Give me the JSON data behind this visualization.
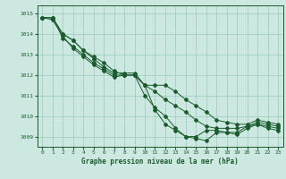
{
  "title": "Graphe pression niveau de la mer (hPa)",
  "background_color": "#cce8e0",
  "grid_color": "#99ccbb",
  "line_color": "#1a5c2e",
  "xlim": [
    -0.5,
    23.5
  ],
  "ylim": [
    1008.5,
    1015.4
  ],
  "yticks": [
    1009,
    1010,
    1011,
    1012,
    1013,
    1014,
    1015
  ],
  "xticks": [
    0,
    1,
    2,
    3,
    4,
    5,
    6,
    7,
    8,
    9,
    10,
    11,
    12,
    13,
    14,
    15,
    16,
    17,
    18,
    19,
    20,
    21,
    22,
    23
  ],
  "series": [
    [
      1014.8,
      1014.8,
      1014.0,
      1013.7,
      1013.2,
      1012.9,
      1012.6,
      1012.2,
      1012.0,
      1012.0,
      1011.5,
      1010.3,
      1009.6,
      1009.3,
      1009.0,
      1008.9,
      1008.8,
      1009.2,
      1009.2,
      1009.2,
      1009.5,
      1009.6,
      1009.4,
      1009.3
    ],
    [
      1014.8,
      1014.8,
      1014.0,
      1013.7,
      1013.2,
      1012.8,
      1012.4,
      1012.1,
      1012.1,
      1012.1,
      1011.5,
      1011.5,
      1011.5,
      1011.2,
      1010.8,
      1010.5,
      1010.2,
      1009.8,
      1009.7,
      1009.6,
      1009.6,
      1009.8,
      1009.7,
      1009.6
    ],
    [
      1014.8,
      1014.8,
      1013.8,
      1013.4,
      1013.0,
      1012.6,
      1012.3,
      1012.0,
      1012.0,
      1012.0,
      1011.5,
      1011.2,
      1010.8,
      1010.5,
      1010.2,
      1009.8,
      1009.5,
      1009.4,
      1009.4,
      1009.4,
      1009.5,
      1009.7,
      1009.6,
      1009.5
    ],
    [
      1014.8,
      1014.7,
      1013.9,
      1013.3,
      1012.9,
      1012.5,
      1012.2,
      1011.9,
      1012.0,
      1012.0,
      1011.0,
      1010.4,
      1010.0,
      1009.4,
      1009.0,
      1009.0,
      1009.3,
      1009.3,
      1009.2,
      1009.1,
      1009.4,
      1009.6,
      1009.5,
      1009.4
    ]
  ]
}
